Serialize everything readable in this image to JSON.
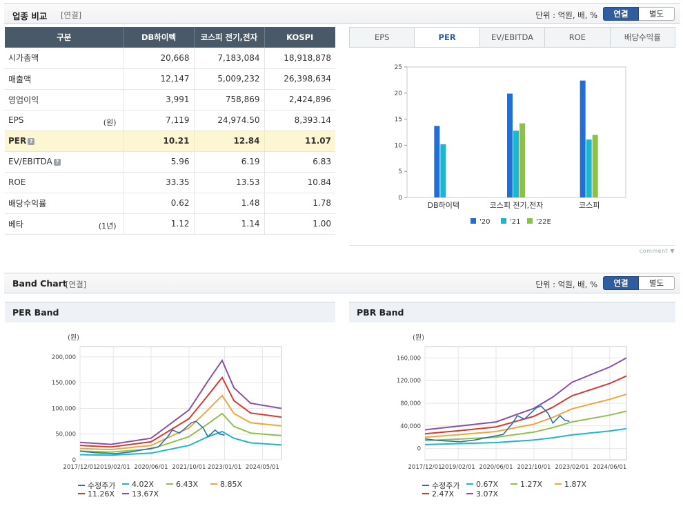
{
  "industry": {
    "title": "업종 비교",
    "sub": "[연결]",
    "unit": "단위 : 억원, 배, %",
    "toggle": {
      "on": "연결",
      "off": "별도"
    },
    "columns": [
      "구분",
      "DB하이텍",
      "코스피 전기,전자",
      "KOSPI"
    ],
    "rows": [
      {
        "label": "시가총액",
        "note": "",
        "help": false,
        "values": [
          "20,668",
          "7,183,084",
          "18,918,878"
        ],
        "highlight": false
      },
      {
        "label": "매출액",
        "note": "",
        "help": false,
        "values": [
          "12,147",
          "5,009,232",
          "26,398,634"
        ],
        "highlight": false
      },
      {
        "label": "영업이익",
        "note": "",
        "help": false,
        "values": [
          "3,991",
          "758,869",
          "2,424,896"
        ],
        "highlight": false
      },
      {
        "label": "EPS",
        "note": "(원)",
        "help": false,
        "values": [
          "7,119",
          "24,974.50",
          "8,393.14"
        ],
        "highlight": false
      },
      {
        "label": "PER",
        "note": "",
        "help": true,
        "values": [
          "10.21",
          "12.84",
          "11.07"
        ],
        "highlight": true
      },
      {
        "label": "EV/EBITDA",
        "note": "",
        "help": true,
        "values": [
          "5.96",
          "6.19",
          "6.83"
        ],
        "highlight": false
      },
      {
        "label": "ROE",
        "note": "",
        "help": false,
        "values": [
          "33.35",
          "13.53",
          "10.84"
        ],
        "highlight": false
      },
      {
        "label": "배당수익률",
        "note": "",
        "help": false,
        "values": [
          "0.62",
          "1.48",
          "1.78"
        ],
        "highlight": false
      },
      {
        "label": "베타",
        "note": "(1년)",
        "help": false,
        "values": [
          "1.12",
          "1.14",
          "1.00"
        ],
        "highlight": false
      }
    ],
    "help_glyph": "?"
  },
  "tabs": [
    {
      "label": "EPS",
      "active": false
    },
    {
      "label": "PER",
      "active": true
    },
    {
      "label": "EV/EBITDA",
      "active": false
    },
    {
      "label": "ROE",
      "active": false
    },
    {
      "label": "배당수익률",
      "active": false
    }
  ],
  "comment_label": "comment",
  "band": {
    "title": "Band Chart",
    "sub": "[연결]",
    "unit": "단위 : 억원, 배, %",
    "toggle": {
      "on": "연결",
      "off": "별도"
    }
  },
  "chart_data": [
    {
      "type": "bar",
      "categories": [
        "DB하이텍",
        "코스피  전기,전자",
        "코스피"
      ],
      "series": [
        {
          "name": "'20",
          "color": "#1f6fd6",
          "values": [
            13.7,
            19.9,
            22.4
          ]
        },
        {
          "name": "'21",
          "color": "#1bb7cf",
          "values": [
            10.2,
            12.8,
            11.1
          ]
        },
        {
          "name": "'22E",
          "color": "#8cc24a",
          "values": [
            null,
            14.2,
            12.0
          ]
        }
      ],
      "ylim": [
        0,
        25
      ],
      "yticks": [
        0,
        5,
        10,
        15,
        20,
        25
      ],
      "grid": false,
      "legend": "bottom"
    },
    {
      "type": "line",
      "title": "PER Band",
      "yunit": "(원)",
      "x_ticks": [
        "2017/12/01",
        "2019/02/01",
        "2020/06/01",
        "2021/10/01",
        "2023/01/01",
        "2024/05/01"
      ],
      "xrange": [
        "2017/12/01",
        "2025/01/01"
      ],
      "ylim": [
        0,
        220000
      ],
      "yticks": [
        0,
        50000,
        100000,
        150000,
        200000
      ],
      "ytick_labels": [
        "0",
        "50,000",
        "100,000",
        "150,000",
        "200,000"
      ],
      "grid": true,
      "legend": "bottom",
      "x": [
        "2017/12/01",
        "2019/01/01",
        "2020/06/01",
        "2021/10/01",
        "2022/06/01",
        "2022/12/01",
        "2023/05/01",
        "2023/12/01",
        "2025/01/01"
      ],
      "series": [
        {
          "name": "4.02X",
          "color": "#1bb7cf",
          "values": [
            10000,
            9000,
            13000,
            28000,
            45000,
            55000,
            42000,
            33000,
            29000
          ]
        },
        {
          "name": "6.43X",
          "color": "#8cc24a",
          "values": [
            17000,
            15000,
            21000,
            45000,
            70000,
            90000,
            65000,
            52000,
            47000
          ]
        },
        {
          "name": "8.85X",
          "color": "#f2a33a",
          "values": [
            22000,
            20000,
            28000,
            62000,
            97000,
            125000,
            90000,
            72000,
            66000
          ]
        },
        {
          "name": "11.26X",
          "color": "#d43a2f",
          "values": [
            28000,
            25000,
            35000,
            80000,
            125000,
            160000,
            115000,
            91000,
            83000
          ]
        },
        {
          "name": "13.67X",
          "color": "#8a4ea8",
          "values": [
            34000,
            30000,
            42000,
            97000,
            153000,
            193000,
            140000,
            110000,
            100000
          ]
        }
      ],
      "price": {
        "name": "수정주가",
        "color": "#2a6cb8",
        "x": [
          "2017/12/01",
          "2018/06/01",
          "2019/03/01",
          "2019/09/01",
          "2020/03/01",
          "2020/09/01",
          "2021/01/01",
          "2021/03/01",
          "2021/06/01",
          "2021/08/01",
          "2021/11/01",
          "2022/01/01",
          "2022/04/01",
          "2022/06/01",
          "2022/09/01",
          "2022/11/01",
          "2023/01/01"
        ],
        "values": [
          17000,
          14000,
          12000,
          15000,
          20000,
          25000,
          45000,
          58000,
          52000,
          60000,
          72000,
          75000,
          62000,
          45000,
          58000,
          50000,
          48000
        ]
      }
    },
    {
      "type": "line",
      "title": "PBR Band",
      "yunit": "(원)",
      "x_ticks": [
        "2017/12/01",
        "2019/02/01",
        "2020/06/01",
        "2021/10/01",
        "2023/02/01",
        "2024/06/01"
      ],
      "xrange": [
        "2017/12/01",
        "2025/01/01"
      ],
      "ylim": [
        -20000,
        180000
      ],
      "yticks": [
        0,
        40000,
        80000,
        120000,
        160000
      ],
      "ytick_labels": [
        "0",
        "40,000",
        "80,000",
        "120,000",
        "160,000"
      ],
      "grid": true,
      "legend": "bottom",
      "x": [
        "2017/12/01",
        "2019/01/01",
        "2020/06/01",
        "2021/10/01",
        "2022/06/01",
        "2023/02/01",
        "2024/06/01",
        "2025/01/01"
      ],
      "series": [
        {
          "name": "0.67X",
          "color": "#1bb7cf",
          "values": [
            7000,
            8500,
            10500,
            15000,
            19000,
            24000,
            31000,
            35000
          ]
        },
        {
          "name": "1.27X",
          "color": "#8cc24a",
          "values": [
            14000,
            16500,
            20000,
            29000,
            37000,
            47000,
            59000,
            66000
          ]
        },
        {
          "name": "1.87X",
          "color": "#f2a33a",
          "values": [
            20000,
            24000,
            30000,
            43000,
            55000,
            70000,
            87000,
            96000
          ]
        },
        {
          "name": "2.47X",
          "color": "#d43a2f",
          "values": [
            26000,
            31000,
            38000,
            57000,
            73000,
            93000,
            115000,
            128000
          ]
        },
        {
          "name": "3.07X",
          "color": "#8a4ea8",
          "values": [
            33000,
            39000,
            47000,
            71000,
            91000,
            117000,
            144000,
            160000
          ]
        }
      ],
      "price": {
        "name": "수정주가",
        "color": "#2a6cb8",
        "x": [
          "2017/12/01",
          "2018/06/01",
          "2019/03/01",
          "2019/09/01",
          "2020/03/01",
          "2020/09/01",
          "2021/01/01",
          "2021/03/01",
          "2021/06/01",
          "2021/08/01",
          "2021/11/01",
          "2022/01/01",
          "2022/04/01",
          "2022/06/01",
          "2022/09/01",
          "2022/11/01",
          "2023/01/01"
        ],
        "values": [
          17000,
          14000,
          12000,
          15000,
          20000,
          25000,
          45000,
          58000,
          52000,
          60000,
          72000,
          75000,
          62000,
          45000,
          58000,
          50000,
          48000
        ]
      }
    }
  ]
}
